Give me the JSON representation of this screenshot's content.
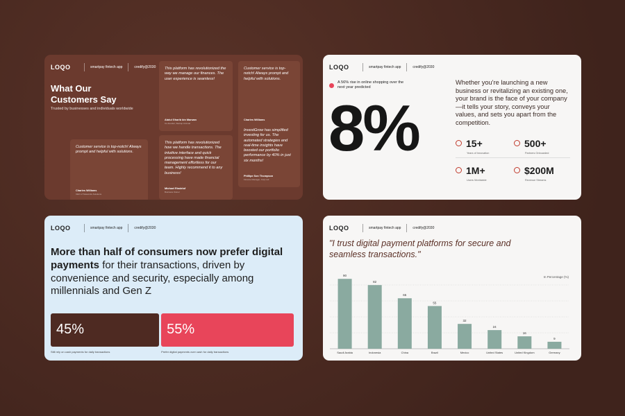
{
  "slides": [
    {
      "logo": "LOQO",
      "tagline": "smartpay fintech app",
      "credit": "credify@2030",
      "title": "What Our Customers Say",
      "subtitle": "Trusted by businesses and individuals worldwide",
      "testimonials": [
        {
          "quote": "This platform has revolutionized the way we manage our finances. The user experience is seamless!",
          "name": "Abdul Gharib bin Marwan",
          "role": "Co-founder, Startup Al Amal"
        },
        {
          "quote": "Customer service is top-notch! Always prompt and helpful with solutions.",
          "name": "Charles Williams",
          "role": "CEO of Teleworks Solutions"
        },
        {
          "quote": "Customer service is top-notch! Always prompt and helpful with solutions.",
          "name": "Charles Williams",
          "role": "CEO of Teleworks Solutions"
        },
        {
          "quote": "This platform has revolutionized how we handle transactions. The intuitive interface and quick processing have made financial management effortless for our team. Highly recommend it to any business!",
          "name": "Michael Rindelof",
          "role": "Business Owner"
        },
        {
          "quote": "InvestGrow has simplified investing for us. The automated strategies and real-time insights have boosted our portfolio performance by 40% in just six months!",
          "name": "Phillipe Son Thompson",
          "role": "Finance Manager, Corp Ltd"
        }
      ]
    },
    {
      "logo": "LOQO",
      "tagline": "smartpay fintech app",
      "credit": "credify@2030",
      "note": "A 56% rise in online shopping over the next year predicted",
      "big": "8%",
      "text": "Whether you're launching a new business or revitalizing an existing one, your brand is the face of your company—it tells your story, conveys your values, and sets you apart from the competition.",
      "metrics": [
        {
          "value": "15+",
          "label": "Years of Innovation"
        },
        {
          "value": "500+",
          "label": "Partners Onboarded"
        },
        {
          "value": "1M+",
          "label": "Users Worldwide"
        },
        {
          "value": "$200M",
          "label": "Revenue Streams"
        }
      ]
    },
    {
      "logo": "LOQO",
      "tagline": "smartpay fintech app",
      "credit": "credify@2030",
      "headline_bold": "More than half of consumers now prefer digital payments",
      "headline_rest": "for their transactions, driven by convenience and security, especially among millennials and Gen Z",
      "split": {
        "values": [
          45,
          55
        ],
        "value_labels": [
          "45%",
          "55%"
        ],
        "colors": [
          "#4e2a22",
          "#e8455a"
        ],
        "labels": [
          "Still rely on cash payments for daily transactions",
          "Prefer digital payments over cash for daily transactions"
        ]
      }
    },
    {
      "logo": "LOQO",
      "tagline": "smartpay fintech app",
      "credit": "credify@2030",
      "quote": "\"I trust digital payment platforms for secure and seamless transactions.\"",
      "chart": {
        "type": "bar",
        "unit_label": "In Percentage (%)",
        "color": "#8aaaa0",
        "categories": [
          "Saudi Arabia",
          "Indonesia",
          "China",
          "Brazil",
          "Mexico",
          "United States",
          "United Kingdom",
          "Germany"
        ],
        "values": [
          90,
          82,
          65,
          55,
          32,
          24,
          16,
          9
        ],
        "ylim": [
          0,
          100
        ]
      }
    }
  ]
}
